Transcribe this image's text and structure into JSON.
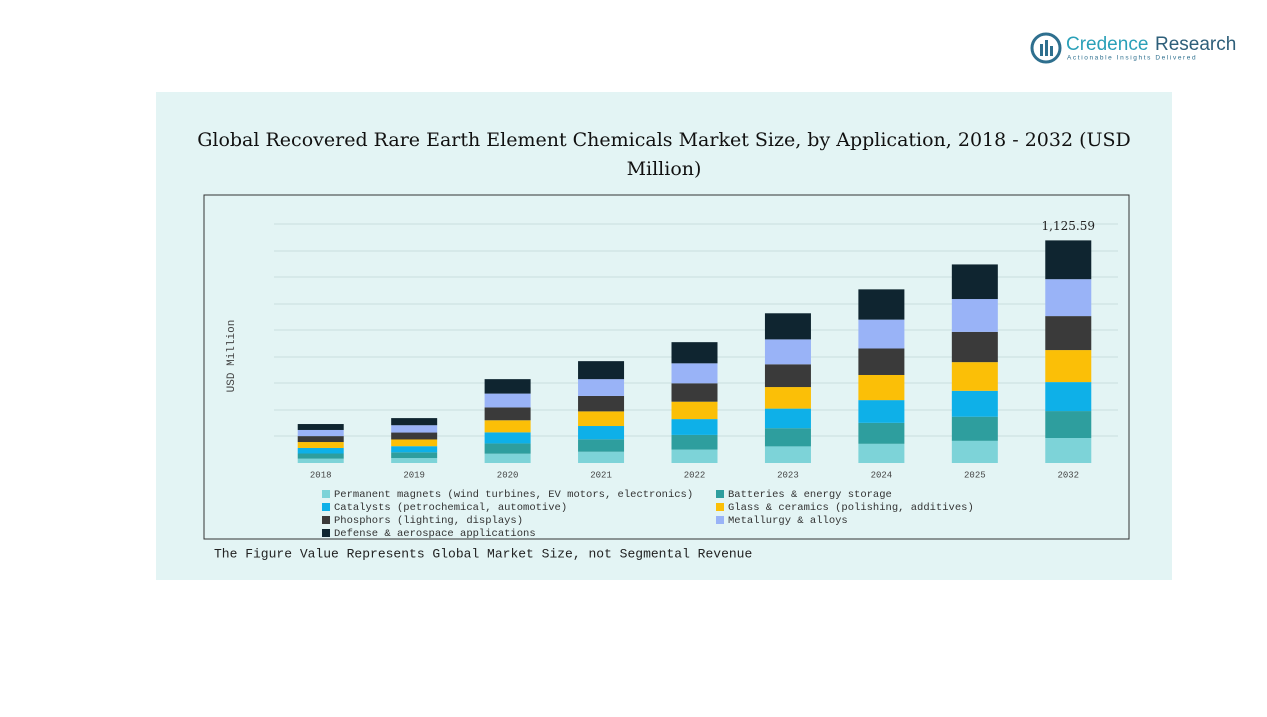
{
  "brand": {
    "name_a": "Credence",
    "name_b": "Research",
    "tagline": "Actionable Insights Delivered"
  },
  "chart_data": {
    "type": "stacked_bar",
    "title": "Global Recovered Rare Earth Element Chemicals Market Size, by Application, 2018 - 2032 (USD Million)",
    "y_label": "USD Million",
    "footnote": "The Figure Value Represents Global Market Size, not Segmental Revenue",
    "categories": [
      "2018",
      "2019",
      "2020",
      "2021",
      "2022",
      "2023",
      "2024",
      "2025",
      "2032"
    ],
    "ylim": [
      0,
      1350
    ],
    "series": [
      {
        "name": "Permanent magnets (wind turbines, EV motors, electronics)",
        "color": "#7dd3d8",
        "values": [
          22,
          25,
          47,
          57,
          68,
          84,
          97,
          112,
          126.4
        ]
      },
      {
        "name": "Batteries & energy storage",
        "color": "#2e9e9e",
        "values": [
          26,
          29,
          52,
          63,
          74,
          92,
          106,
          122,
          136.2
        ]
      },
      {
        "name": "Catalysts (petrochemical, automotive)",
        "color": "#0eb0e8",
        "values": [
          28,
          31,
          56,
          67,
          80,
          99,
          115,
          131,
          146.5
        ]
      },
      {
        "name": "Glass & ceramics (polishing, additives)",
        "color": "#fbbf07",
        "values": [
          30,
          34,
          61,
          74,
          88,
          109,
          127,
          145,
          161.9
        ]
      },
      {
        "name": "Phosphors (lighting, displays)",
        "color": "#3a3a3a",
        "values": [
          30,
          35,
          65,
          78,
          93,
          115,
          134,
          153,
          171.8
        ]
      },
      {
        "name": "Metallurgy & alloys",
        "color": "#99b3f7",
        "values": [
          31,
          37,
          70,
          85,
          101,
          126,
          146,
          166,
          186.6
        ]
      },
      {
        "name": "Defense & aerospace applications",
        "color": "#0f2530",
        "values": [
          30,
          36,
          73,
          91,
          107,
          132,
          153,
          175,
          196.19
        ]
      }
    ],
    "total_labels": [
      {
        "value": 1125.59,
        "label": "1,125.59"
      }
    ]
  }
}
